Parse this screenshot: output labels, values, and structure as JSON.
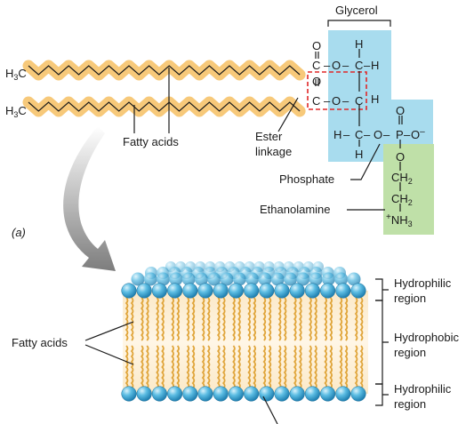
{
  "molecule": {
    "glycerol_label": "Glycerol",
    "h3c": "H",
    "h3c_sub": "3",
    "h3c_c": "C",
    "atoms": {
      "O": "O",
      "C": "C",
      "H": "H",
      "P": "P",
      "O_minus": "O",
      "minus": "–",
      "N": "NH",
      "N_sub": "3",
      "plus": "+",
      "CH": "CH",
      "CH_sub": "2"
    },
    "bond_dash": "–"
  },
  "labels": {
    "fatty_acids_top": "Fatty acids",
    "ester_line1": "Ester",
    "ester_line2": "linkage",
    "phosphate": "Phosphate",
    "ethanolamine": "Ethanolamine",
    "panel_a": "(a)",
    "fatty_acids_bottom": "Fatty acids",
    "hydrophilic_top_1": "Hydrophilic",
    "hydrophilic_top_2": "region",
    "hydrophobic_1": "Hydrophobic",
    "hydrophobic_2": "region",
    "hydrophilic_bottom_1": "Hydrophilic",
    "hydrophilic_bottom_2": "region"
  },
  "colors": {
    "tail_band": "#f7c97a",
    "glycerol_box": "#a8dcee",
    "ethanolamine_box": "#bfe0a8",
    "ester_box": "#e02828",
    "head_ball": "#3aa6d6",
    "tail_wave": "#e0a53a",
    "arrow": "#8a8a8a"
  }
}
